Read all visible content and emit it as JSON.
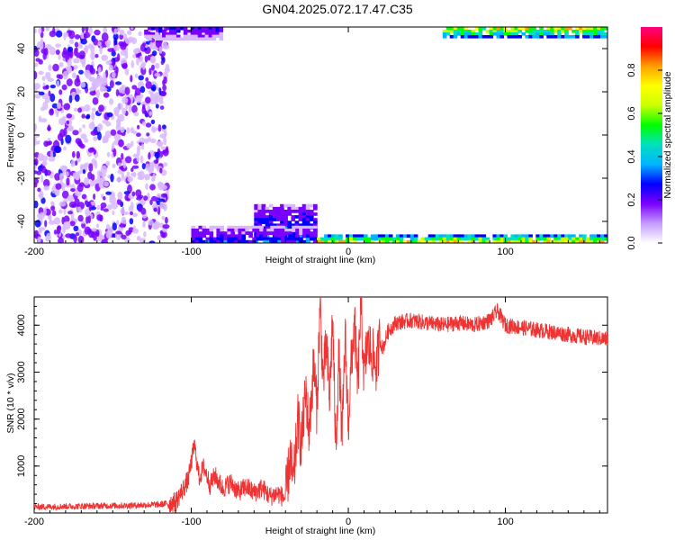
{
  "title": "GN04.2025.072.17.47.C35",
  "chart_data": [
    {
      "type": "heatmap",
      "xlabel": "Height of straight line (km)",
      "ylabel": "Frequency (Hz)",
      "xlim": [
        -200,
        165
      ],
      "ylim": [
        -50,
        50
      ],
      "x_ticks": [
        "-200",
        "-100",
        "0",
        "100"
      ],
      "y_ticks": [
        "40",
        "20",
        "0",
        "-20",
        "-40"
      ],
      "colorbar": {
        "label": "Normalized spectral amplitude",
        "range": [
          0,
          1
        ],
        "ticks": [
          "0.0",
          "0.2",
          "0.4",
          "0.6",
          "0.8"
        ],
        "colors": [
          "#ffffff",
          "#d8b8ff",
          "#7a00ff",
          "#0000ff",
          "#00b4ff",
          "#00e0c0",
          "#00ff00",
          "#c8ff00",
          "#ffff00",
          "#ffa000",
          "#ff0000",
          "#ff0080"
        ]
      },
      "regions": [
        {
          "x": [
            -200,
            -115
          ],
          "y": [
            -50,
            50
          ],
          "level": 0.3,
          "pattern": "speckle"
        },
        {
          "x": [
            -60,
            -20
          ],
          "y": [
            -50,
            -32
          ],
          "level": 0.45,
          "pattern": "band"
        },
        {
          "x": [
            -100,
            -20
          ],
          "y": [
            -50,
            -42
          ],
          "level": 0.35,
          "pattern": "band"
        },
        {
          "x": [
            -20,
            165
          ],
          "y": [
            -50,
            -46
          ],
          "level": 0.95,
          "pattern": "band"
        },
        {
          "x": [
            60,
            165
          ],
          "y": [
            45,
            50
          ],
          "level": 0.9,
          "pattern": "band"
        },
        {
          "x": [
            -130,
            -80
          ],
          "y": [
            44,
            50
          ],
          "level": 0.3,
          "pattern": "band"
        }
      ]
    },
    {
      "type": "line",
      "xlabel": "Height of straight line (km)",
      "ylabel": "SNR (10 * v/v)",
      "xlim": [
        -200,
        165
      ],
      "ylim": [
        0,
        4600
      ],
      "x_ticks": [
        "-200",
        "-100",
        "0",
        "100"
      ],
      "y_ticks": [
        "1000",
        "2000",
        "3000",
        "4000"
      ],
      "color": "#ee3333",
      "series": [
        {
          "x": [
            -200,
            -180,
            -160,
            -140,
            -120,
            -110,
            -102,
            -98,
            -95,
            -92,
            -88,
            -85,
            -80,
            -75,
            -70,
            -65,
            -60,
            -55,
            -50,
            -45,
            -40,
            -37,
            -35,
            -32,
            -30,
            -27,
            -25,
            -22,
            -20,
            -18,
            -16,
            -14,
            -12,
            -10,
            -8,
            -6,
            -4,
            -2,
            0,
            2,
            4,
            6,
            8,
            10,
            12,
            15,
            18,
            20,
            22,
            25,
            30,
            40,
            50,
            60,
            70,
            80,
            90,
            95,
            100,
            110,
            120,
            130,
            140,
            150,
            165
          ],
          "y": [
            130,
            140,
            150,
            160,
            180,
            230,
            700,
            1450,
            750,
            980,
            600,
            800,
            520,
            650,
            450,
            560,
            430,
            540,
            350,
            420,
            300,
            1200,
            600,
            2000,
            1400,
            2600,
            1700,
            3200,
            2200,
            4450,
            2800,
            3600,
            2400,
            4200,
            1350,
            3400,
            1500,
            3800,
            1850,
            3300,
            4000,
            2650,
            4550,
            2900,
            3600,
            3400,
            3100,
            3700,
            3500,
            3850,
            4050,
            4100,
            4050,
            4000,
            4050,
            4000,
            4100,
            4300,
            4000,
            3950,
            3900,
            3850,
            3800,
            3750,
            3700
          ]
        }
      ]
    }
  ]
}
